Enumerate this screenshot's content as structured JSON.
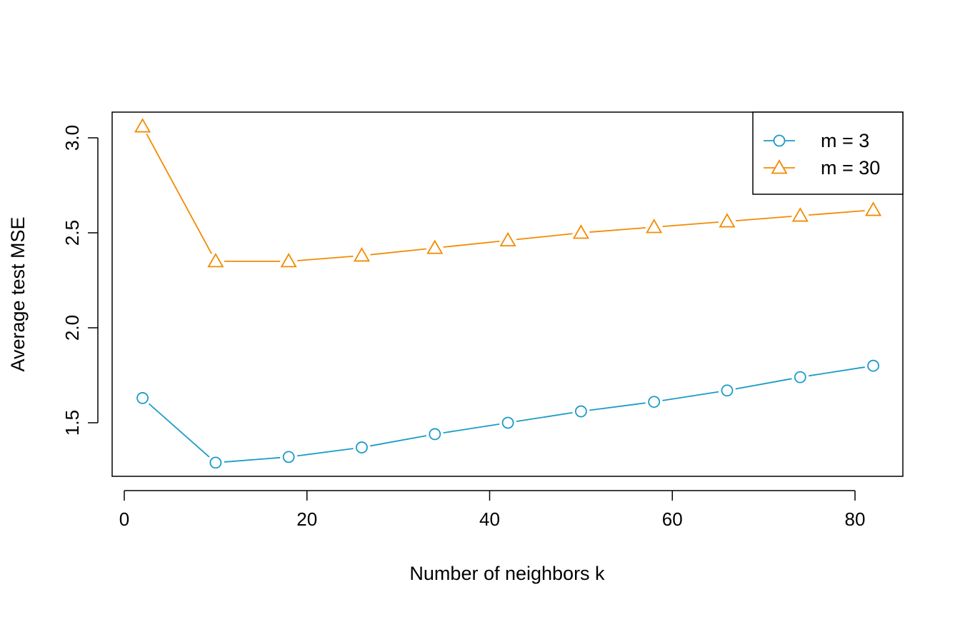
{
  "chart_data": {
    "type": "line",
    "title": "",
    "xlabel": "Number of neighbors k",
    "ylabel": "Average test MSE",
    "xlim": [
      0,
      85
    ],
    "ylim": [
      1.25,
      3.1
    ],
    "xticks": [
      0,
      20,
      40,
      60,
      80
    ],
    "xtick_labels": [
      "0",
      "20",
      "40",
      "60",
      "80"
    ],
    "yticks": [
      1.5,
      2.0,
      2.5,
      3.0
    ],
    "ytick_labels": [
      "1.5",
      "2.0",
      "2.5",
      "3.0"
    ],
    "x": [
      2,
      10,
      18,
      26,
      34,
      42,
      50,
      58,
      66,
      74,
      82
    ],
    "series": [
      {
        "name": "m = 3",
        "marker": "circle",
        "color": "#1a9bc7",
        "values": [
          1.63,
          1.29,
          1.32,
          1.37,
          1.44,
          1.5,
          1.56,
          1.61,
          1.67,
          1.74,
          1.8
        ]
      },
      {
        "name": "m = 30",
        "marker": "triangle",
        "color": "#f28b00",
        "values": [
          3.06,
          2.35,
          2.35,
          2.38,
          2.42,
          2.46,
          2.5,
          2.53,
          2.56,
          2.59,
          2.62
        ]
      }
    ],
    "legend_position": "top-right",
    "grid": false
  }
}
